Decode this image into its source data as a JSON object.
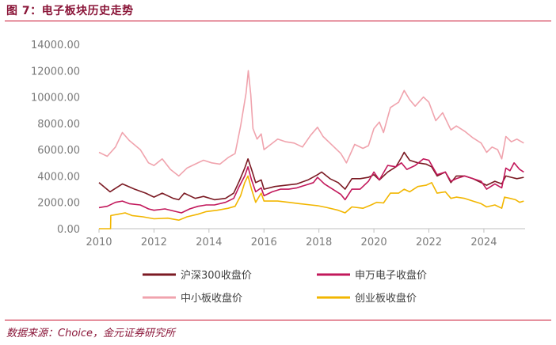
{
  "header": {
    "title": "图 7：电子板块历史走势"
  },
  "footer": {
    "source": "数据来源：Choice，金元证券研究所"
  },
  "chart_data": {
    "type": "line",
    "x_ticks": [
      "2010",
      "2012",
      "2014",
      "2016",
      "2018",
      "2020",
      "2022",
      "2024"
    ],
    "y_ticks": [
      "0.00",
      "2000.00",
      "4000.00",
      "6000.00",
      "8000.00",
      "10000.00",
      "12000.00",
      "14000.00"
    ],
    "xlim": [
      2010.0,
      2025.5
    ],
    "ylim": [
      0,
      14000
    ],
    "grid": false,
    "legend_position": "bottom",
    "series": [
      {
        "name": "中小板收盘价",
        "color": "#f0a3ad",
        "points": [
          [
            2010.0,
            5800
          ],
          [
            2010.3,
            5500
          ],
          [
            2010.6,
            6200
          ],
          [
            2010.85,
            7300
          ],
          [
            2011.1,
            6700
          ],
          [
            2011.5,
            6000
          ],
          [
            2011.8,
            5000
          ],
          [
            2012.0,
            4800
          ],
          [
            2012.3,
            5300
          ],
          [
            2012.6,
            4500
          ],
          [
            2012.9,
            4000
          ],
          [
            2013.2,
            4600
          ],
          [
            2013.5,
            4900
          ],
          [
            2013.8,
            5200
          ],
          [
            2014.1,
            5000
          ],
          [
            2014.4,
            4900
          ],
          [
            2014.7,
            5400
          ],
          [
            2014.95,
            5700
          ],
          [
            2015.15,
            7800
          ],
          [
            2015.35,
            10300
          ],
          [
            2015.43,
            12000
          ],
          [
            2015.52,
            10200
          ],
          [
            2015.6,
            7600
          ],
          [
            2015.75,
            6800
          ],
          [
            2015.9,
            7200
          ],
          [
            2016.0,
            6000
          ],
          [
            2016.25,
            6400
          ],
          [
            2016.5,
            6800
          ],
          [
            2016.8,
            6600
          ],
          [
            2017.1,
            6500
          ],
          [
            2017.4,
            6200
          ],
          [
            2017.7,
            7100
          ],
          [
            2017.95,
            7700
          ],
          [
            2018.15,
            7000
          ],
          [
            2018.5,
            6300
          ],
          [
            2018.8,
            5700
          ],
          [
            2019.0,
            5000
          ],
          [
            2019.3,
            6400
          ],
          [
            2019.6,
            6100
          ],
          [
            2019.8,
            6300
          ],
          [
            2020.0,
            7600
          ],
          [
            2020.2,
            8100
          ],
          [
            2020.35,
            7300
          ],
          [
            2020.6,
            9200
          ],
          [
            2020.9,
            9600
          ],
          [
            2021.1,
            10500
          ],
          [
            2021.3,
            9800
          ],
          [
            2021.5,
            9300
          ],
          [
            2021.8,
            10000
          ],
          [
            2022.0,
            9600
          ],
          [
            2022.25,
            8200
          ],
          [
            2022.5,
            8800
          ],
          [
            2022.8,
            7500
          ],
          [
            2023.0,
            7800
          ],
          [
            2023.3,
            7400
          ],
          [
            2023.6,
            6900
          ],
          [
            2023.9,
            6500
          ],
          [
            2024.1,
            5800
          ],
          [
            2024.3,
            6200
          ],
          [
            2024.5,
            6000
          ],
          [
            2024.65,
            5300
          ],
          [
            2024.8,
            7000
          ],
          [
            2025.0,
            6600
          ],
          [
            2025.2,
            6800
          ],
          [
            2025.45,
            6500
          ]
        ]
      },
      {
        "name": "沪深300收盘价",
        "color": "#7b1a23",
        "points": [
          [
            2010.0,
            3500
          ],
          [
            2010.4,
            2800
          ],
          [
            2010.85,
            3400
          ],
          [
            2011.3,
            3000
          ],
          [
            2011.7,
            2700
          ],
          [
            2012.0,
            2400
          ],
          [
            2012.3,
            2700
          ],
          [
            2012.7,
            2300
          ],
          [
            2012.9,
            2200
          ],
          [
            2013.1,
            2700
          ],
          [
            2013.5,
            2300
          ],
          [
            2013.8,
            2450
          ],
          [
            2014.2,
            2200
          ],
          [
            2014.6,
            2300
          ],
          [
            2014.9,
            2700
          ],
          [
            2015.1,
            3600
          ],
          [
            2015.3,
            4600
          ],
          [
            2015.42,
            5300
          ],
          [
            2015.55,
            4500
          ],
          [
            2015.7,
            3500
          ],
          [
            2015.9,
            3700
          ],
          [
            2016.0,
            3000
          ],
          [
            2016.4,
            3200
          ],
          [
            2016.8,
            3300
          ],
          [
            2017.2,
            3400
          ],
          [
            2017.6,
            3700
          ],
          [
            2017.95,
            4100
          ],
          [
            2018.1,
            4300
          ],
          [
            2018.4,
            3800
          ],
          [
            2018.7,
            3500
          ],
          [
            2018.95,
            3000
          ],
          [
            2019.2,
            3800
          ],
          [
            2019.5,
            3800
          ],
          [
            2019.8,
            3900
          ],
          [
            2020.0,
            4100
          ],
          [
            2020.2,
            3700
          ],
          [
            2020.5,
            4300
          ],
          [
            2020.8,
            4700
          ],
          [
            2021.0,
            5400
          ],
          [
            2021.1,
            5800
          ],
          [
            2021.3,
            5200
          ],
          [
            2021.6,
            5000
          ],
          [
            2021.9,
            4900
          ],
          [
            2022.1,
            4700
          ],
          [
            2022.3,
            4000
          ],
          [
            2022.6,
            4300
          ],
          [
            2022.8,
            3500
          ],
          [
            2023.0,
            4000
          ],
          [
            2023.3,
            4000
          ],
          [
            2023.6,
            3800
          ],
          [
            2023.9,
            3500
          ],
          [
            2024.1,
            3300
          ],
          [
            2024.4,
            3600
          ],
          [
            2024.65,
            3400
          ],
          [
            2024.8,
            4000
          ],
          [
            2025.0,
            3900
          ],
          [
            2025.2,
            3800
          ],
          [
            2025.45,
            3900
          ]
        ]
      },
      {
        "name": "申万电子收盘价",
        "color": "#c2185b",
        "points": [
          [
            2010.0,
            1600
          ],
          [
            2010.3,
            1700
          ],
          [
            2010.6,
            2000
          ],
          [
            2010.85,
            2100
          ],
          [
            2011.1,
            1900
          ],
          [
            2011.5,
            1800
          ],
          [
            2011.8,
            1500
          ],
          [
            2012.0,
            1400
          ],
          [
            2012.4,
            1500
          ],
          [
            2012.8,
            1300
          ],
          [
            2013.0,
            1200
          ],
          [
            2013.3,
            1500
          ],
          [
            2013.6,
            1700
          ],
          [
            2013.9,
            1800
          ],
          [
            2014.2,
            1800
          ],
          [
            2014.6,
            2000
          ],
          [
            2014.9,
            2300
          ],
          [
            2015.1,
            3200
          ],
          [
            2015.3,
            4000
          ],
          [
            2015.42,
            4700
          ],
          [
            2015.55,
            3700
          ],
          [
            2015.7,
            2800
          ],
          [
            2015.9,
            3100
          ],
          [
            2016.0,
            2500
          ],
          [
            2016.3,
            2800
          ],
          [
            2016.6,
            3000
          ],
          [
            2016.9,
            3000
          ],
          [
            2017.2,
            3100
          ],
          [
            2017.5,
            3300
          ],
          [
            2017.8,
            3500
          ],
          [
            2017.95,
            3900
          ],
          [
            2018.2,
            3400
          ],
          [
            2018.5,
            3000
          ],
          [
            2018.8,
            2600
          ],
          [
            2018.95,
            2200
          ],
          [
            2019.2,
            3000
          ],
          [
            2019.5,
            3000
          ],
          [
            2019.8,
            3600
          ],
          [
            2020.0,
            4300
          ],
          [
            2020.2,
            3700
          ],
          [
            2020.5,
            4800
          ],
          [
            2020.8,
            4700
          ],
          [
            2021.0,
            5000
          ],
          [
            2021.2,
            4500
          ],
          [
            2021.5,
            4800
          ],
          [
            2021.8,
            5300
          ],
          [
            2022.0,
            5200
          ],
          [
            2022.3,
            4100
          ],
          [
            2022.6,
            4300
          ],
          [
            2022.8,
            3600
          ],
          [
            2023.0,
            3800
          ],
          [
            2023.3,
            4000
          ],
          [
            2023.6,
            3800
          ],
          [
            2023.9,
            3600
          ],
          [
            2024.1,
            3000
          ],
          [
            2024.4,
            3400
          ],
          [
            2024.65,
            3100
          ],
          [
            2024.8,
            4600
          ],
          [
            2024.95,
            4400
          ],
          [
            2025.1,
            5000
          ],
          [
            2025.3,
            4500
          ],
          [
            2025.45,
            4300
          ]
        ]
      },
      {
        "name": "创业板收盘价",
        "color": "#f2b600",
        "points": [
          [
            2010.0,
            0
          ],
          [
            2010.42,
            0
          ],
          [
            2010.43,
            1000
          ],
          [
            2010.7,
            1100
          ],
          [
            2010.95,
            1200
          ],
          [
            2011.2,
            1000
          ],
          [
            2011.6,
            900
          ],
          [
            2012.0,
            750
          ],
          [
            2012.5,
            800
          ],
          [
            2012.9,
            650
          ],
          [
            2013.2,
            900
          ],
          [
            2013.6,
            1100
          ],
          [
            2013.9,
            1300
          ],
          [
            2014.3,
            1400
          ],
          [
            2014.7,
            1550
          ],
          [
            2014.95,
            1700
          ],
          [
            2015.15,
            2500
          ],
          [
            2015.3,
            3500
          ],
          [
            2015.42,
            4000
          ],
          [
            2015.55,
            3000
          ],
          [
            2015.7,
            2000
          ],
          [
            2015.9,
            2700
          ],
          [
            2016.0,
            2100
          ],
          [
            2016.5,
            2100
          ],
          [
            2016.9,
            2000
          ],
          [
            2017.3,
            1900
          ],
          [
            2017.7,
            1800
          ],
          [
            2017.95,
            1750
          ],
          [
            2018.3,
            1600
          ],
          [
            2018.7,
            1400
          ],
          [
            2018.95,
            1200
          ],
          [
            2019.2,
            1650
          ],
          [
            2019.6,
            1550
          ],
          [
            2019.9,
            1800
          ],
          [
            2020.1,
            2000
          ],
          [
            2020.35,
            1950
          ],
          [
            2020.6,
            2700
          ],
          [
            2020.9,
            2700
          ],
          [
            2021.1,
            3000
          ],
          [
            2021.3,
            2800
          ],
          [
            2021.6,
            3200
          ],
          [
            2021.9,
            3300
          ],
          [
            2022.1,
            3500
          ],
          [
            2022.3,
            2700
          ],
          [
            2022.6,
            2800
          ],
          [
            2022.8,
            2300
          ],
          [
            2023.0,
            2400
          ],
          [
            2023.3,
            2300
          ],
          [
            2023.6,
            2100
          ],
          [
            2023.9,
            1900
          ],
          [
            2024.1,
            1650
          ],
          [
            2024.4,
            1800
          ],
          [
            2024.65,
            1550
          ],
          [
            2024.75,
            2400
          ],
          [
            2024.95,
            2300
          ],
          [
            2025.15,
            2200
          ],
          [
            2025.3,
            2000
          ],
          [
            2025.45,
            2100
          ]
        ]
      }
    ],
    "legend": [
      {
        "label": "沪深300收盘价",
        "color": "#7b1a23"
      },
      {
        "label": "申万电子收盘价",
        "color": "#c2185b"
      },
      {
        "label": "中小板收盘价",
        "color": "#f0a3ad"
      },
      {
        "label": "创业板收盘价",
        "color": "#f2b600"
      }
    ]
  }
}
